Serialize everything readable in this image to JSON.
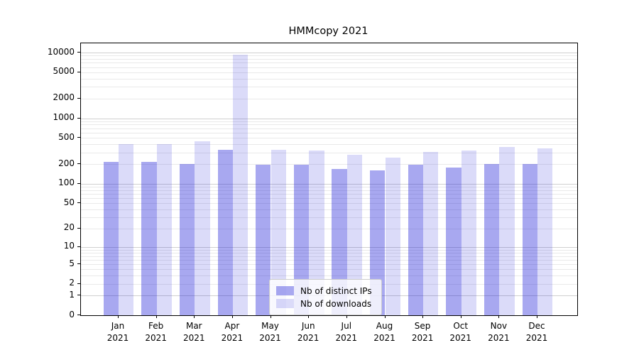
{
  "chart_data": {
    "type": "bar",
    "title": "HMMcopy 2021",
    "categories": [
      "Jan",
      "Feb",
      "Mar",
      "Apr",
      "May",
      "Jun",
      "Jul",
      "Aug",
      "Sep",
      "Oct",
      "Nov",
      "Dec"
    ],
    "x_tick_year": "2021",
    "series": [
      {
        "name": "Nb of distinct IPs",
        "color": "rgba(25,25,215,0.38)",
        "values": [
          215,
          215,
          198,
          330,
          193,
          197,
          168,
          160,
          197,
          176,
          198,
          198
        ]
      },
      {
        "name": "Nb of downloads",
        "color": "rgba(25,25,215,0.155)",
        "values": [
          405,
          405,
          445,
          9300,
          330,
          320,
          275,
          250,
          303,
          318,
          365,
          350
        ]
      }
    ],
    "y_ticks": [
      0,
      1,
      2,
      5,
      10,
      20,
      50,
      100,
      200,
      500,
      1000,
      2000,
      5000,
      10000
    ],
    "y_scale": "log1p",
    "ylim": [
      0,
      14000
    ],
    "grid": {
      "major_ticks": [
        1,
        10,
        100,
        1000,
        10000
      ],
      "minor": "log-decades 2-9",
      "major_color": "#d0d0d0",
      "minor_color": "#e9e9e9"
    },
    "legend_position": "lower center",
    "axis_color": "#000000"
  }
}
